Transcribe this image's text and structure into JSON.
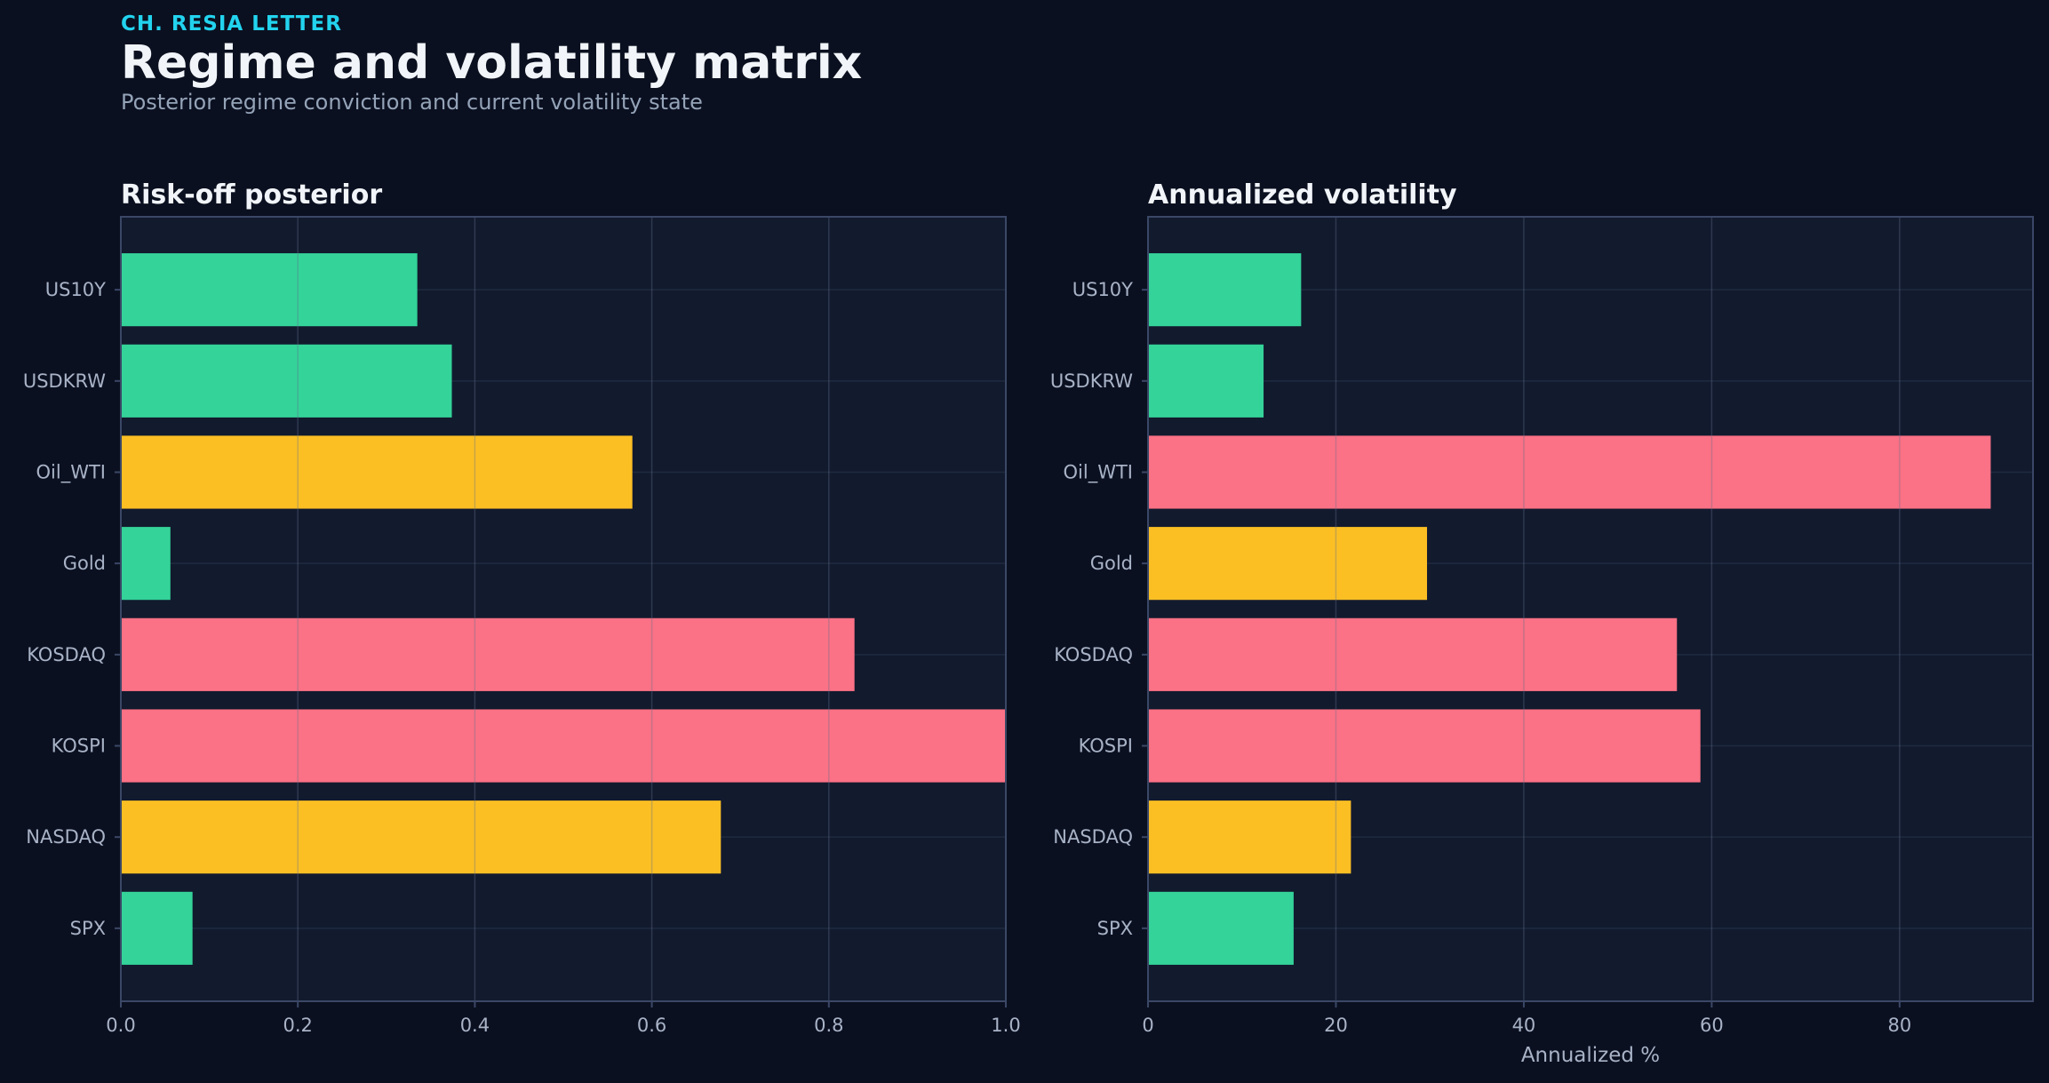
{
  "header": {
    "eyebrow": "CH. RESIA LETTER",
    "title": "Regime and volatility matrix",
    "subtitle": "Posterior regime conviction and current volatility state"
  },
  "colors": {
    "background": "#0b1020",
    "panel": "#121a2e",
    "green": "#34d399",
    "yellow": "#fbbf24",
    "red": "#fb7185",
    "grid": "#1f2a40",
    "frame": "#3a4766",
    "text_muted": "#a8b3c7"
  },
  "chart_data": [
    {
      "type": "bar",
      "orientation": "horizontal",
      "title": "Risk-off posterior",
      "xlabel": "",
      "categories": [
        "US10Y",
        "USDKRW",
        "Oil_WTI",
        "Gold",
        "KOSDAQ",
        "KOSPI",
        "NASDAQ",
        "SPX"
      ],
      "values": [
        0.335,
        0.374,
        0.578,
        0.056,
        0.829,
        1.0,
        0.678,
        0.081
      ],
      "bar_colors": [
        "green",
        "green",
        "yellow",
        "green",
        "red",
        "red",
        "yellow",
        "green"
      ],
      "xlim": [
        0,
        1.0
      ],
      "xticks": [
        0.0,
        0.2,
        0.4,
        0.6,
        0.8,
        1.0
      ],
      "xtick_labels": [
        "0.0",
        "0.2",
        "0.4",
        "0.6",
        "0.8",
        "1.0"
      ],
      "grid": true
    },
    {
      "type": "bar",
      "orientation": "horizontal",
      "title": "Annualized volatility",
      "xlabel": "Annualized %",
      "categories": [
        "US10Y",
        "USDKRW",
        "Oil_WTI",
        "Gold",
        "KOSDAQ",
        "KOSPI",
        "NASDAQ",
        "SPX"
      ],
      "values": [
        16.3,
        12.3,
        89.7,
        29.7,
        56.3,
        58.8,
        21.6,
        15.5
      ],
      "bar_colors": [
        "green",
        "green",
        "red",
        "yellow",
        "red",
        "red",
        "yellow",
        "green"
      ],
      "xlim": [
        0,
        94.2
      ],
      "xticks": [
        0,
        20,
        40,
        60,
        80
      ],
      "xtick_labels": [
        "0",
        "20",
        "40",
        "60",
        "80"
      ],
      "grid": true
    }
  ]
}
